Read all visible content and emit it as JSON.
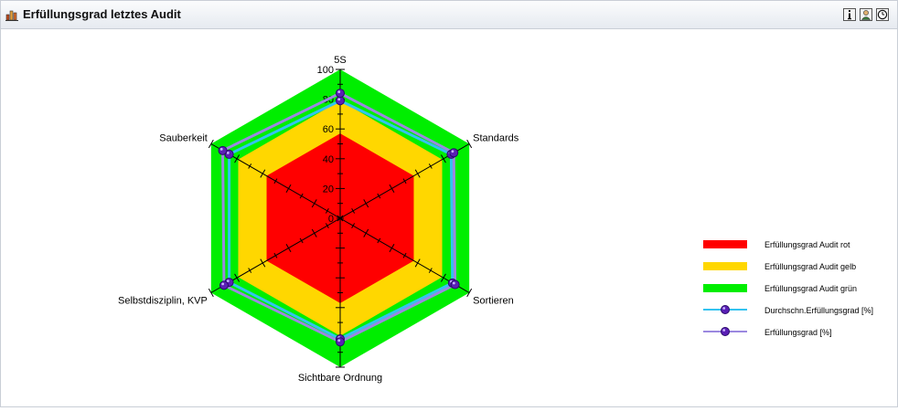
{
  "window": {
    "title": "Erfüllungsgrad letztes Audit",
    "buttons": [
      {
        "icon": "info-icon"
      },
      {
        "icon": "user-settings-icon"
      },
      {
        "icon": "clock-icon"
      }
    ]
  },
  "chart_data": {
    "type": "radar",
    "title": "",
    "axes": [
      "5S",
      "Standards",
      "Sortieren",
      "Sichtbare Ordnung",
      "Selbstdisziplin, KVP",
      "Sauberkeit"
    ],
    "rlim": [
      0,
      100
    ],
    "ticks": [
      "0",
      "20",
      "40",
      "60",
      "80",
      "100"
    ],
    "bands": [
      {
        "name": "Erfüllungsgrad Audit rot",
        "color": "#ff0000",
        "value": 57
      },
      {
        "name": "Erfüllungsgrad Audit gelb",
        "color": "#ffd700",
        "value": 79
      },
      {
        "name": "Erfüllungsgrad Audit grün",
        "color": "#00ee00",
        "value": 100
      }
    ],
    "series": [
      {
        "name": "Durchschn.Erfüllungsgrad [%]",
        "color": "#33c3f0",
        "values": [
          79,
          86,
          87,
          81,
          86,
          86
        ]
      },
      {
        "name": "Erfüllungsgrad [%]",
        "color": "#9b88e0",
        "values": [
          84,
          88,
          89,
          83,
          90,
          91
        ]
      }
    ],
    "legend_position": "right",
    "grid": false
  }
}
